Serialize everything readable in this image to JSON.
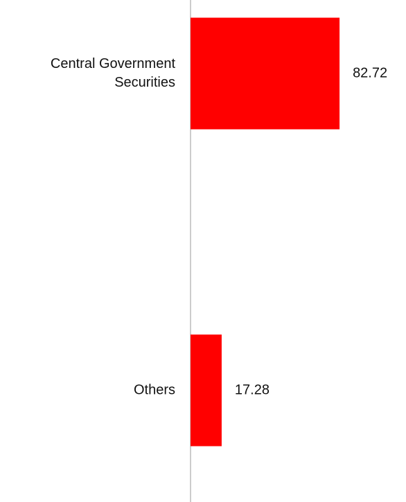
{
  "chart_data": {
    "type": "bar",
    "orientation": "horizontal",
    "categories": [
      "Central Government Securities",
      "Others"
    ],
    "values": [
      82.72,
      17.28
    ],
    "color": "#ff0000",
    "xlim": [
      0,
      100
    ]
  }
}
